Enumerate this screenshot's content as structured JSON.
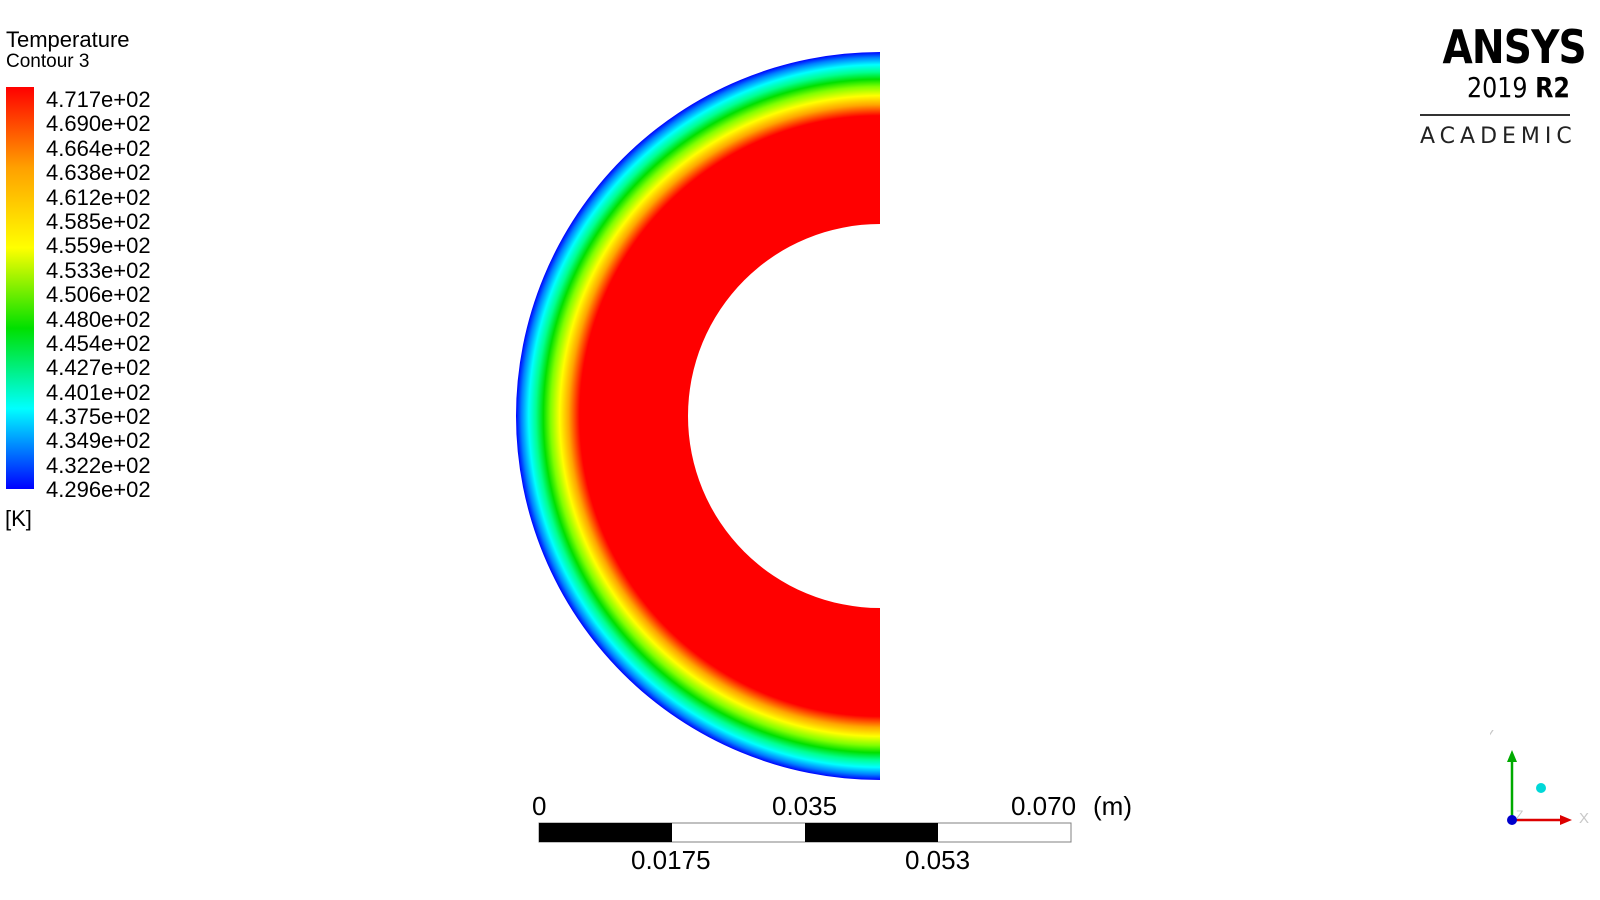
{
  "legend": {
    "title": "Temperature",
    "subtitle": "Contour 3",
    "unit": "[K]",
    "labels": [
      "4.717e+02",
      "4.690e+02",
      "4.664e+02",
      "4.638e+02",
      "4.612e+02",
      "4.585e+02",
      "4.559e+02",
      "4.533e+02",
      "4.506e+02",
      "4.480e+02",
      "4.454e+02",
      "4.427e+02",
      "4.401e+02",
      "4.375e+02",
      "4.349e+02",
      "4.322e+02",
      "4.296e+02"
    ],
    "gradient_colors": [
      "#ff0000",
      "#ffa000",
      "#ffff00",
      "#00e000",
      "#00ffff",
      "#0000ff"
    ]
  },
  "logo": {
    "brand": "ANSYS",
    "version_year": "2019",
    "version_release": "R2",
    "edition": "ACADEMIC"
  },
  "scale_bar": {
    "top_labels": [
      "0",
      "0.035",
      "0.070"
    ],
    "unit": "(m)",
    "bottom_labels": [
      "0.0175",
      "0.053"
    ]
  },
  "axis_triad": {
    "y_label": "Y",
    "z_label": "Z",
    "x_label": "X",
    "y_color": "#00aa00",
    "x_color": "#dd0000",
    "z_color": "#0000cc"
  },
  "contour": {
    "inner_color": "#ff0000",
    "outer_color": "#0000ff"
  }
}
